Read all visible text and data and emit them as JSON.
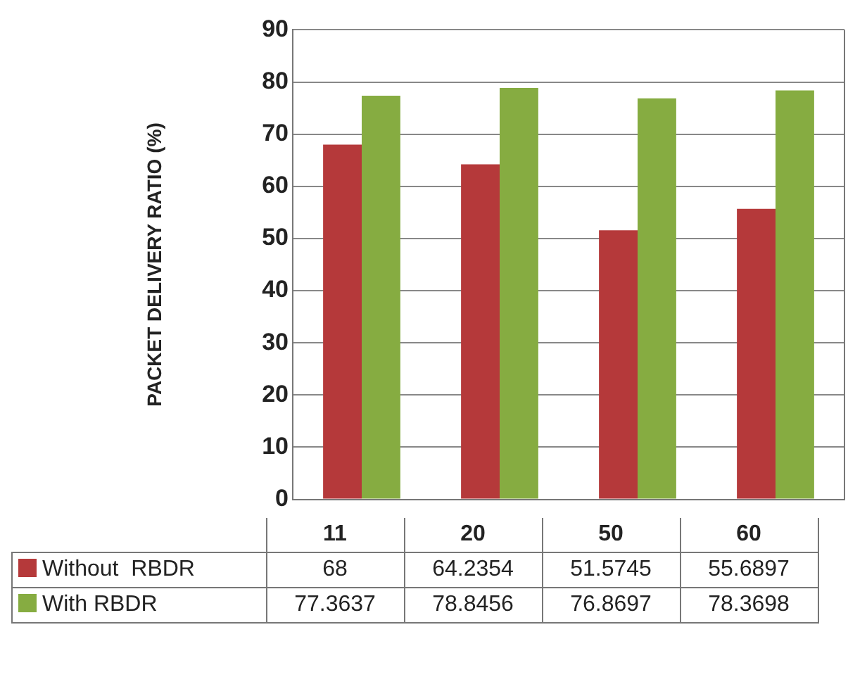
{
  "chart_data": {
    "type": "bar",
    "ylabel": "PACKET DELIVERY RATIO (%)",
    "categories": [
      "11",
      "20",
      "50",
      "60"
    ],
    "series": [
      {
        "name": "Without  RBDR",
        "color": "#b5393a",
        "values": [
          68,
          64.2354,
          51.5745,
          55.6897
        ]
      },
      {
        "name": "With RBDR",
        "color": "#86ac41",
        "values": [
          77.3637,
          78.8456,
          76.8697,
          78.3698
        ]
      }
    ],
    "ylim": [
      0,
      90
    ],
    "yticks": [
      0,
      10,
      20,
      30,
      40,
      50,
      60,
      70,
      80,
      90
    ],
    "grid": "y",
    "legend": "bottom",
    "data_labels": true
  }
}
